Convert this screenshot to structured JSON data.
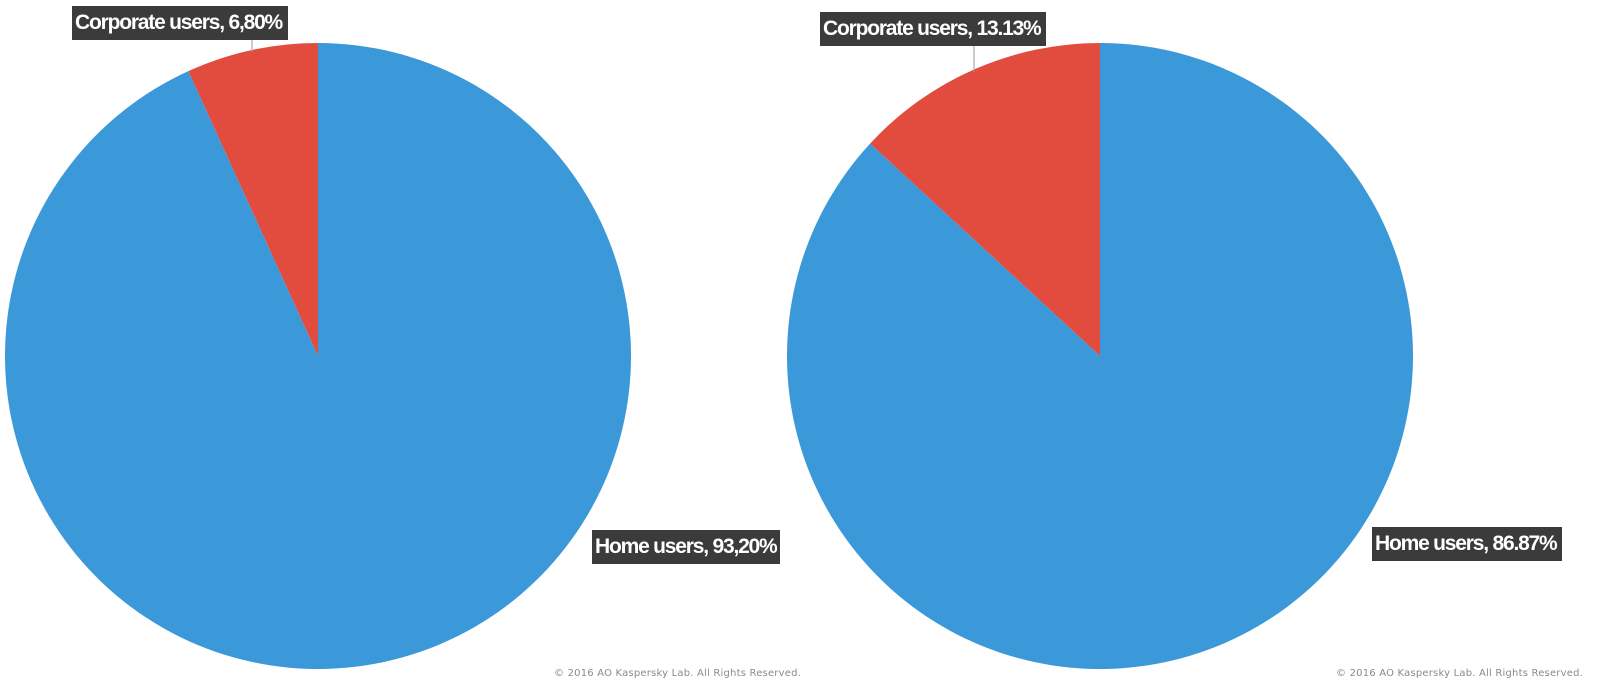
{
  "chart_data": [
    {
      "type": "pie",
      "slices": [
        {
          "label": "Corporate users",
          "value": 6.8,
          "display": "Corporate users, 6,80%",
          "color": "#e24c3f"
        },
        {
          "label": "Home users",
          "value": 93.2,
          "display": "Home users, 93,20%",
          "color": "#3b98d9"
        }
      ],
      "copyright": "© 2016 AO Kaspersky Lab. All Rights Reserved."
    },
    {
      "type": "pie",
      "slices": [
        {
          "label": "Corporate users",
          "value": 13.13,
          "display": "Corporate users, 13.13%",
          "color": "#e24c3f"
        },
        {
          "label": "Home users",
          "value": 86.87,
          "display": "Home users, 86.87%",
          "color": "#3b98d9"
        }
      ],
      "copyright": "© 2016 AO Kaspersky Lab. All Rights Reserved."
    }
  ]
}
